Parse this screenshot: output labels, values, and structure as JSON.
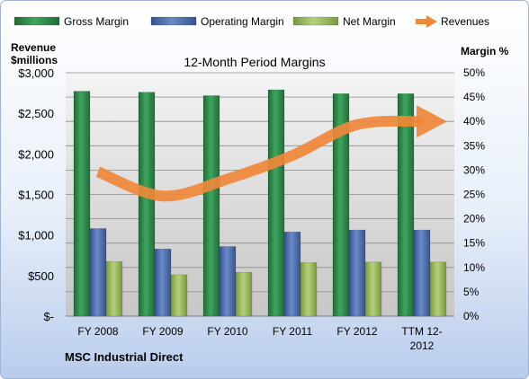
{
  "chart_data": {
    "type": "bar",
    "title": "12-Month Period Margins",
    "left_axis_title_line1": "Revenue",
    "left_axis_title_line2": "$millions",
    "right_axis_title": "Margin %",
    "company": "MSC Industrial Direct",
    "categories": [
      {
        "line1": "FY 2008",
        "line2": ""
      },
      {
        "line1": "FY 2009",
        "line2": ""
      },
      {
        "line1": "FY 2010",
        "line2": ""
      },
      {
        "line1": "FY 2011",
        "line2": ""
      },
      {
        "line1": "FY 2012",
        "line2": ""
      },
      {
        "line1": "TTM 12-",
        "line2": "2012"
      }
    ],
    "left_axis": {
      "min": 0,
      "max": 3000,
      "ticks": [
        "$-",
        "$500",
        "$1,000",
        "$1,500",
        "$2,000",
        "$2,500",
        "$3,000"
      ]
    },
    "right_axis": {
      "min": 0,
      "max": 50,
      "ticks": [
        "0%",
        "5%",
        "10%",
        "15%",
        "20%",
        "25%",
        "30%",
        "35%",
        "40%",
        "45%",
        "50%"
      ]
    },
    "series": [
      {
        "name": "Gross Margin",
        "type": "bar",
        "axis": "right",
        "color": "#2E8B4A",
        "values": [
          46.2,
          46.0,
          45.3,
          46.5,
          45.7,
          45.7
        ]
      },
      {
        "name": "Operating Margin",
        "type": "bar",
        "axis": "right",
        "color": "#4F6FB0",
        "values": [
          18.0,
          13.8,
          14.3,
          17.3,
          17.7,
          17.7
        ]
      },
      {
        "name": "Net Margin",
        "type": "bar",
        "axis": "right",
        "color": "#9BBB59",
        "values": [
          11.2,
          8.5,
          9.0,
          11.0,
          11.1,
          11.1
        ]
      },
      {
        "name": "Revenues",
        "type": "line",
        "axis": "left",
        "color": "#F0883A",
        "values": [
          1780,
          1480,
          1690,
          1980,
          2360,
          2400
        ]
      }
    ],
    "grid": true,
    "legend_position": "top"
  }
}
